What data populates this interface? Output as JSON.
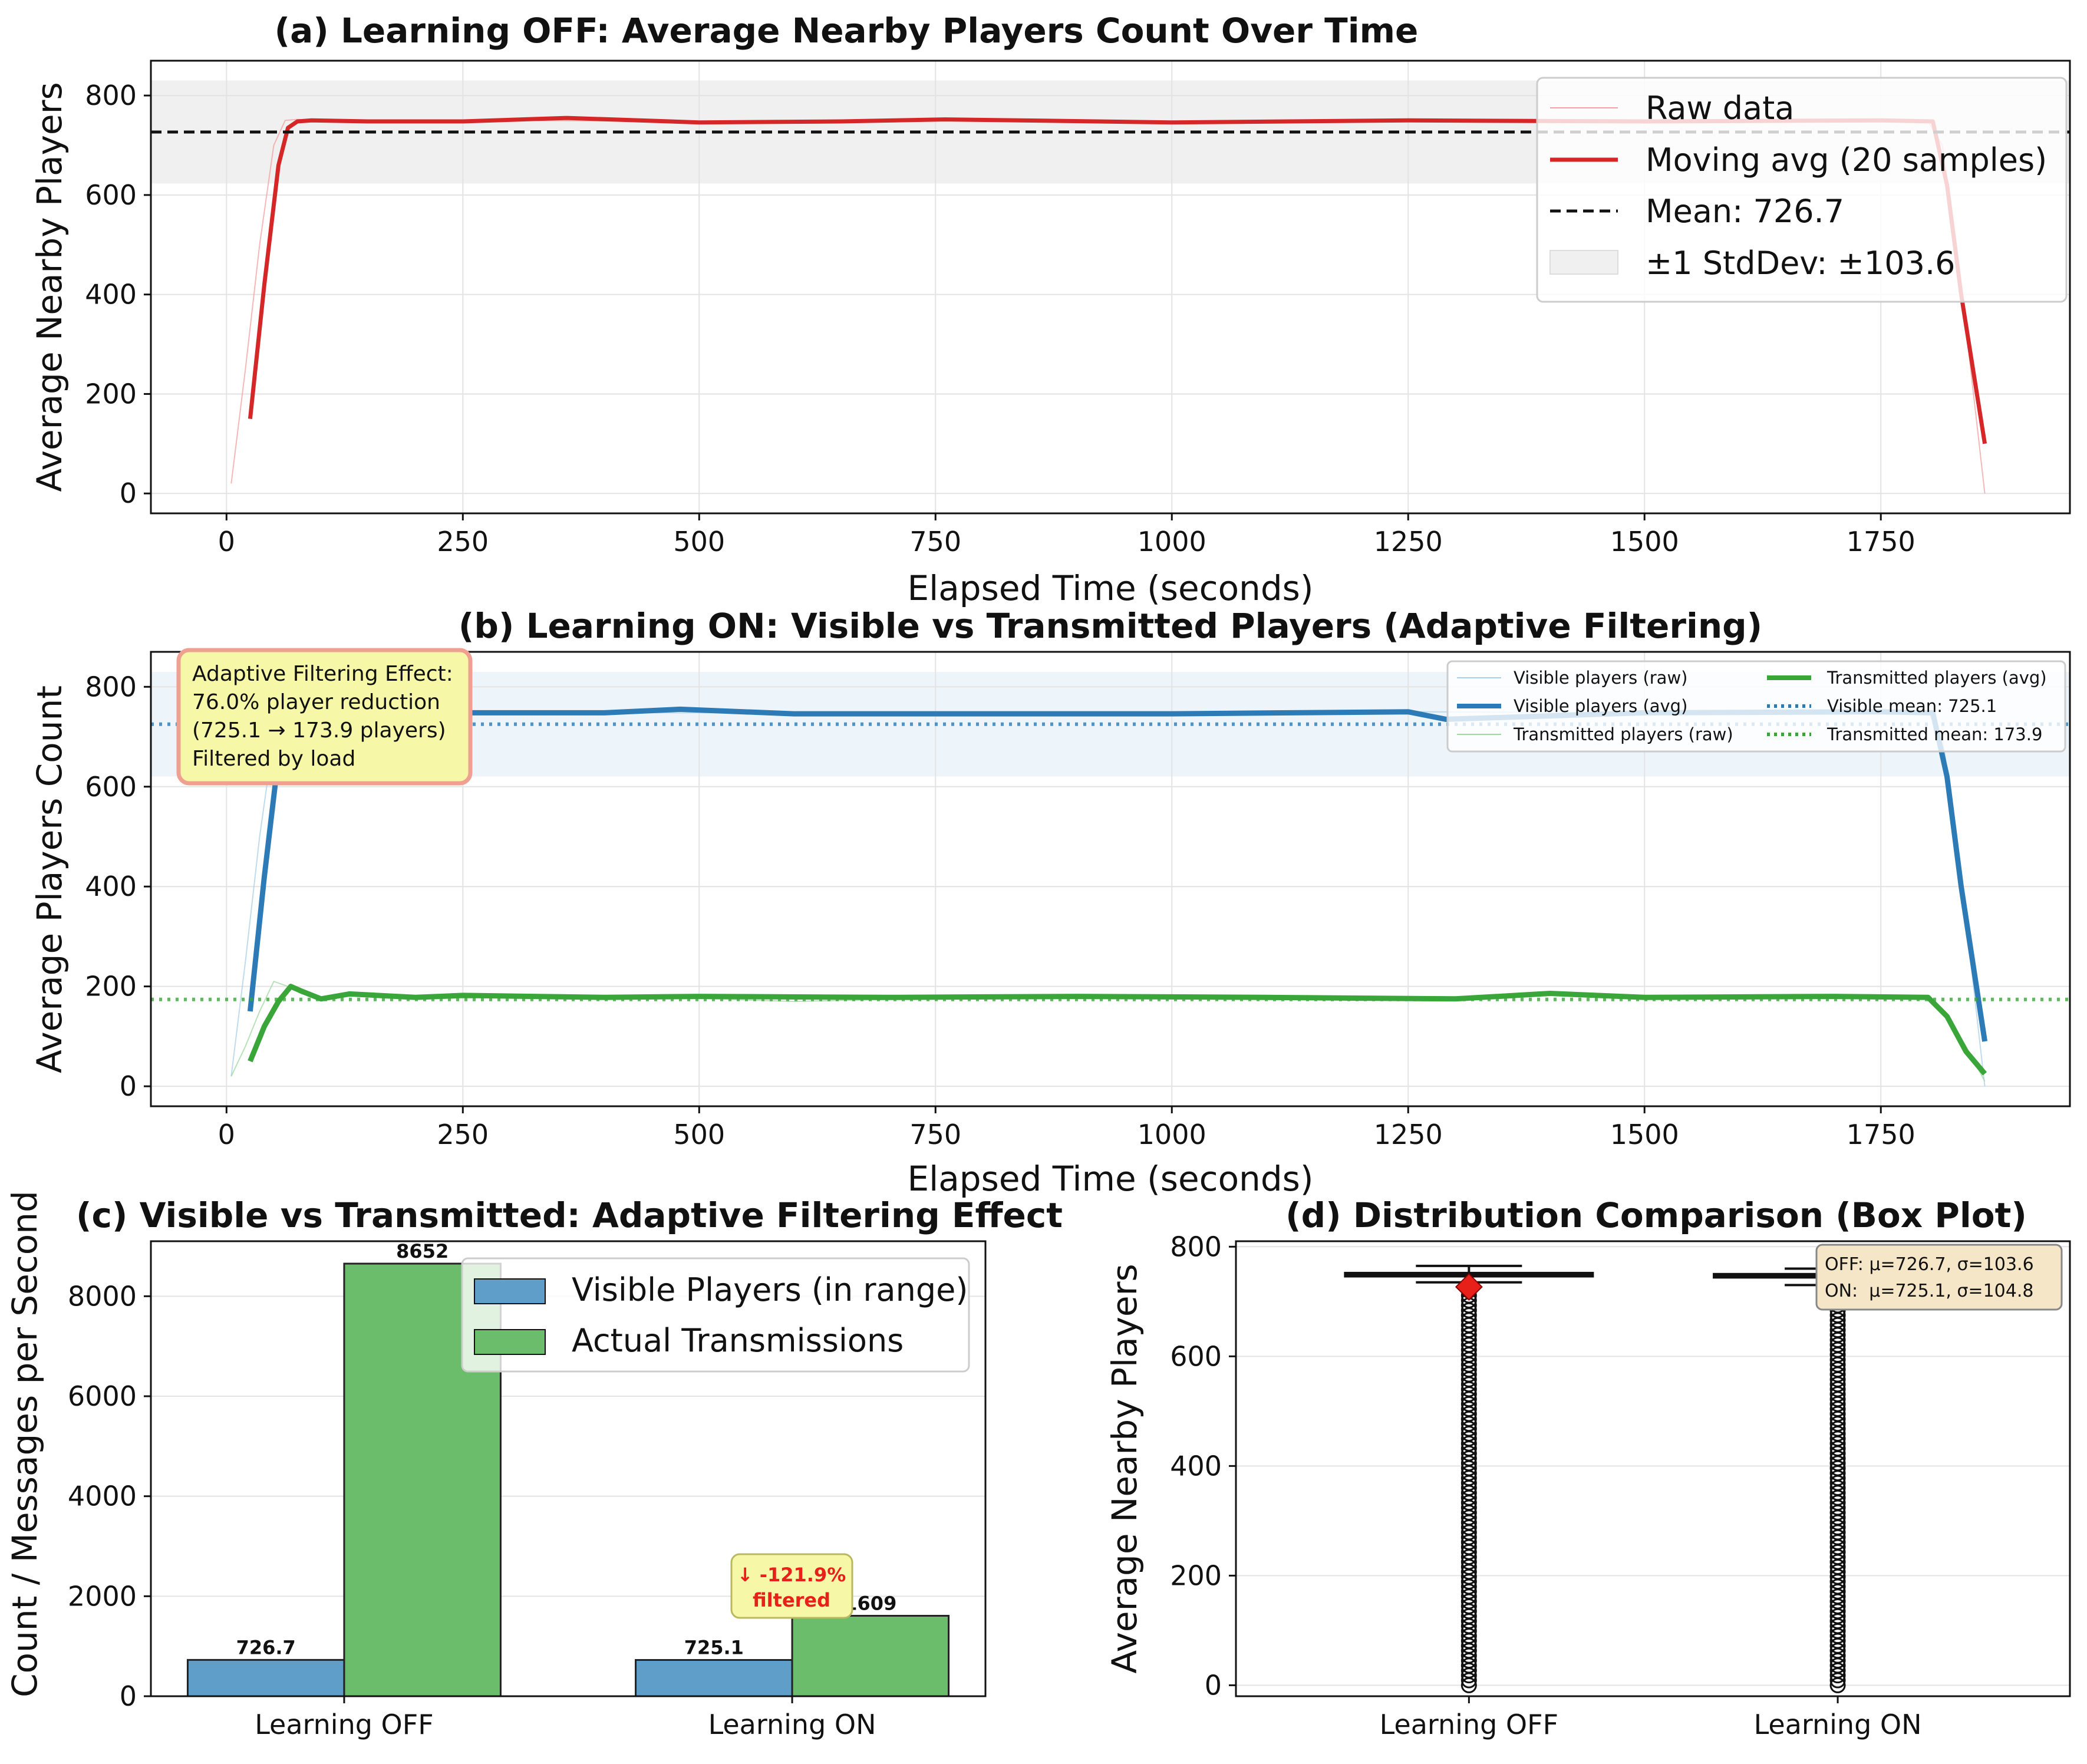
{
  "colors": {
    "red": "#d62728",
    "red_raw": "#f2a0a0",
    "blue": "#2c7bb6",
    "blue_raw": "#a9cfe6",
    "blue_bar": "#5f9ec9",
    "green": "#3aa63a",
    "green_raw": "#9fd89f",
    "green_bar": "#6bbd6b",
    "band_gray": "#f0f0f0",
    "band_blue": "#eef5fa",
    "annot_fill": "#f7f7a8",
    "annot_edge": "#f0a090",
    "stats_fill": "#f5e6c8",
    "grid": "#e3e3e3",
    "diamond": "#e8201a",
    "filtered_text": "#e8201a"
  },
  "chart_data": [
    {
      "id": "a",
      "type": "line",
      "title": "(a) Learning OFF: Average Nearby Players Count Over Time",
      "xlabel": "Elapsed Time (seconds)",
      "ylabel": "Average Nearby Players",
      "xlim": [
        -80,
        1950
      ],
      "ylim": [
        -40,
        870
      ],
      "xticks": [
        0,
        250,
        500,
        750,
        1000,
        1250,
        1500,
        1750
      ],
      "yticks": [
        0,
        200,
        400,
        600,
        800
      ],
      "grid": true,
      "legend_position": "top-right",
      "legend": [
        "Raw data",
        "Moving avg (20 samples)",
        "Mean: 726.7",
        "±1 StdDev: ±103.6"
      ],
      "series": [
        {
          "name": "Raw data",
          "style": "thin",
          "x": [
            5,
            20,
            35,
            50,
            62,
            75,
            100,
            300,
            500,
            750,
            1000,
            1250,
            1500,
            1750,
            1800,
            1815,
            1830,
            1845,
            1860
          ],
          "y": [
            20,
            250,
            500,
            700,
            750,
            752,
            748,
            750,
            748,
            750,
            747,
            750,
            748,
            750,
            748,
            700,
            500,
            250,
            0
          ]
        },
        {
          "name": "Moving avg (20 samples)",
          "style": "thick",
          "x": [
            25,
            40,
            55,
            65,
            75,
            90,
            150,
            250,
            360,
            500,
            650,
            760,
            1000,
            1250,
            1500,
            1750,
            1805,
            1820,
            1835,
            1860
          ],
          "y": [
            150,
            420,
            660,
            735,
            748,
            750,
            748,
            748,
            755,
            746,
            748,
            752,
            746,
            750,
            748,
            750,
            748,
            620,
            400,
            100
          ]
        }
      ],
      "mean": 726.7,
      "std": 103.6
    },
    {
      "id": "b",
      "type": "line",
      "title": "(b) Learning ON: Visible vs Transmitted Players (Adaptive Filtering)",
      "xlabel": "Elapsed Time (seconds)",
      "ylabel": "Average Players Count",
      "xlim": [
        -80,
        1950
      ],
      "ylim": [
        -40,
        870
      ],
      "xticks": [
        0,
        250,
        500,
        750,
        1000,
        1250,
        1500,
        1750
      ],
      "yticks": [
        0,
        200,
        400,
        600,
        800
      ],
      "grid": true,
      "legend_position": "top-right",
      "legend": [
        "Visible players (raw)",
        "Visible players (avg)",
        "Transmitted players (raw)",
        "Transmitted players (avg)",
        "Visible mean: 725.1",
        "Transmitted mean: 173.9"
      ],
      "series": [
        {
          "name": "Visible players (raw)",
          "style": "thin",
          "x": [
            5,
            20,
            35,
            50,
            62,
            75,
            100,
            500,
            1000,
            1250,
            1500,
            1750,
            1800,
            1815,
            1830,
            1845,
            1860
          ],
          "y": [
            20,
            250,
            500,
            700,
            750,
            752,
            748,
            748,
            747,
            750,
            748,
            750,
            748,
            700,
            500,
            250,
            0
          ]
        },
        {
          "name": "Visible players (avg)",
          "style": "thick",
          "x": [
            25,
            40,
            55,
            65,
            75,
            90,
            150,
            250,
            400,
            480,
            600,
            750,
            1000,
            1250,
            1290,
            1500,
            1750,
            1805,
            1820,
            1835,
            1860
          ],
          "y": [
            150,
            420,
            660,
            735,
            748,
            750,
            748,
            748,
            748,
            755,
            746,
            746,
            746,
            750,
            735,
            748,
            750,
            748,
            620,
            400,
            90
          ]
        },
        {
          "name": "Transmitted players (raw)",
          "style": "thin",
          "x": [
            5,
            20,
            35,
            50,
            65,
            80,
            100,
            130,
            200,
            400,
            600,
            800,
            1000,
            1200,
            1400,
            1600,
            1800,
            1820,
            1840,
            1860
          ],
          "y": [
            20,
            80,
            150,
            210,
            200,
            185,
            178,
            185,
            175,
            182,
            170,
            178,
            180,
            172,
            185,
            178,
            180,
            140,
            80,
            10
          ]
        },
        {
          "name": "Transmitted players (avg)",
          "style": "thick",
          "x": [
            25,
            40,
            55,
            68,
            80,
            100,
            130,
            200,
            250,
            400,
            500,
            700,
            900,
            1100,
            1300,
            1400,
            1500,
            1700,
            1800,
            1820,
            1840,
            1860
          ],
          "y": [
            50,
            120,
            170,
            200,
            190,
            175,
            185,
            178,
            182,
            178,
            180,
            178,
            180,
            178,
            175,
            186,
            178,
            180,
            178,
            140,
            70,
            25
          ]
        }
      ],
      "visible_mean": 725.1,
      "transmitted_mean": 173.9,
      "annotation": [
        "Adaptive Filtering Effect:",
        "76.0% player reduction",
        "(725.1 → 173.9 players)",
        "Filtered by load"
      ]
    },
    {
      "id": "c",
      "type": "bar",
      "title": "(c) Visible vs Transmitted: Adaptive Filtering Effect",
      "xlabel": "",
      "ylabel": "Count / Messages per Second",
      "ylim": [
        0,
        9100
      ],
      "yticks": [
        0,
        2000,
        4000,
        6000,
        8000
      ],
      "grid": true,
      "legend_position": "top-right",
      "categories": [
        "Learning OFF",
        "Learning ON"
      ],
      "series": [
        {
          "name": "Visible Players (in range)",
          "values": [
            726.7,
            725.1
          ],
          "labels": [
            "726.7",
            "725.1"
          ]
        },
        {
          "name": "Actual Transmissions",
          "values": [
            8652,
            1609
          ],
          "labels": [
            "8652",
            "1609"
          ]
        }
      ],
      "annotation": [
        "↓ -121.9%",
        "filtered"
      ]
    },
    {
      "id": "d",
      "type": "box",
      "title": "(d) Distribution Comparison (Box Plot)",
      "xlabel": "",
      "ylabel": "Average Nearby Players",
      "ylim": [
        -20,
        810
      ],
      "yticks": [
        0,
        200,
        400,
        600,
        800
      ],
      "grid": true,
      "categories": [
        "Learning OFF",
        "Learning ON"
      ],
      "boxes": [
        {
          "q1": 746,
          "median": 749,
          "q3": 752,
          "whisker_low": 735,
          "whisker_high": 765,
          "mean": 726.7,
          "outlier_min": 0,
          "outlier_max": 730
        },
        {
          "q1": 744,
          "median": 747,
          "q3": 750,
          "whisker_low": 730,
          "whisker_high": 760,
          "mean": 725.1,
          "outlier_min": 0,
          "outlier_max": 725
        }
      ],
      "stats_text": [
        "OFF: μ=726.7, σ=103.6",
        "ON:  μ=725.1, σ=104.8"
      ]
    }
  ]
}
